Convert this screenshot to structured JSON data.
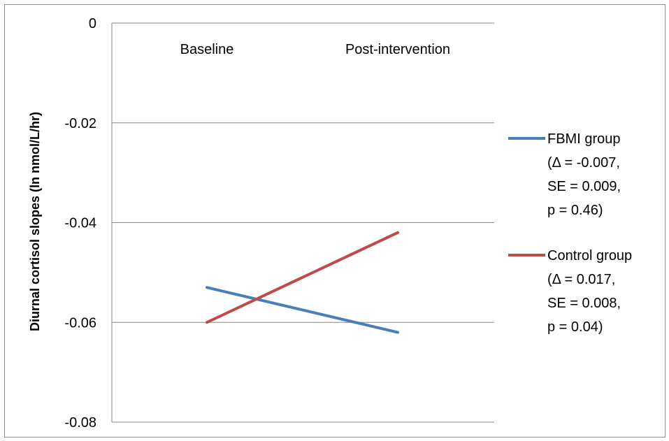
{
  "chart_data": {
    "type": "line",
    "categories": [
      "Baseline",
      "Post-intervention"
    ],
    "ylabel": "Diurnal cortisol slopes (ln nmol/L/hr)",
    "ylim": [
      -0.08,
      0
    ],
    "yticks": [
      "0",
      "-0.02",
      "-0.04",
      "-0.06",
      "-0.08"
    ],
    "ytick_values": [
      0,
      -0.02,
      -0.04,
      -0.06,
      -0.08
    ],
    "grid": true,
    "legend_position": "right",
    "series": [
      {
        "name": "FBMI group",
        "legend_lines": [
          "FBMI group",
          "(Δ = -0.007,",
          "SE = 0.009,",
          "p = 0.46)"
        ],
        "values": [
          -0.053,
          -0.062
        ],
        "color": "#4a7ebb"
      },
      {
        "name": "Control group",
        "legend_lines": [
          "Control group",
          "(Δ = 0.017,",
          "SE = 0.008,",
          "p = 0.04)"
        ],
        "values": [
          -0.06,
          -0.042
        ],
        "color": "#be4b48"
      }
    ]
  }
}
